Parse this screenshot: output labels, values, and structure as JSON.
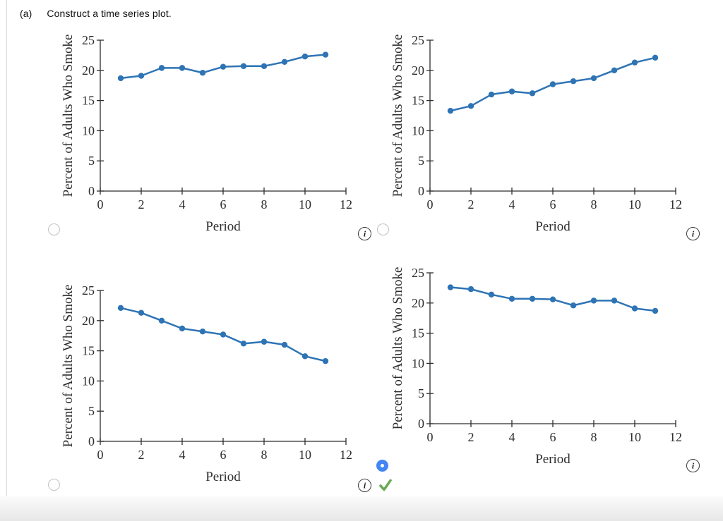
{
  "question": {
    "part_label": "(a)",
    "text": "Construct a time series plot."
  },
  "colors": {
    "line": "#2e74b5",
    "axis": "#2d2d2d",
    "text": "#2d2d2d",
    "selected_radio": "#4285f4",
    "correct_check": "#6aab58"
  },
  "icons": {
    "info_glyph": "i",
    "info_name": "info-icon",
    "check_name": "correct-check-icon"
  },
  "options": [
    {
      "id": "top-left",
      "selected": false,
      "correct_mark": false
    },
    {
      "id": "top-right",
      "selected": false,
      "correct_mark": false
    },
    {
      "id": "bottom-left",
      "selected": false,
      "correct_mark": false
    },
    {
      "id": "bottom-right",
      "selected": true,
      "correct_mark": true
    }
  ],
  "chart_data": [
    {
      "type": "line",
      "position": "top-left",
      "x": [
        1,
        2,
        3,
        4,
        5,
        6,
        7,
        8,
        9,
        10,
        11
      ],
      "values": [
        18.7,
        19.1,
        20.4,
        20.4,
        19.6,
        20.6,
        20.7,
        20.7,
        21.4,
        22.3,
        22.6
      ],
      "xlabel": "Period",
      "ylabel": "Percent of Adults Who Smoke",
      "xlim": [
        0,
        12
      ],
      "ylim": [
        0,
        25
      ],
      "xticks": [
        0,
        2,
        4,
        6,
        8,
        10,
        12
      ],
      "yticks": [
        0,
        5,
        10,
        15,
        20,
        25
      ],
      "grid": false,
      "legend": null
    },
    {
      "type": "line",
      "position": "top-right",
      "x": [
        1,
        2,
        3,
        4,
        5,
        6,
        7,
        8,
        9,
        10,
        11
      ],
      "values": [
        13.3,
        14.1,
        16.0,
        16.5,
        16.2,
        17.7,
        18.2,
        18.7,
        20.0,
        21.3,
        22.1
      ],
      "xlabel": "Period",
      "ylabel": "Percent of Adults Who Smoke",
      "xlim": [
        0,
        12
      ],
      "ylim": [
        0,
        25
      ],
      "xticks": [
        0,
        2,
        4,
        6,
        8,
        10,
        12
      ],
      "yticks": [
        0,
        5,
        10,
        15,
        20,
        25
      ],
      "grid": false,
      "legend": null
    },
    {
      "type": "line",
      "position": "bottom-left",
      "x": [
        1,
        2,
        3,
        4,
        5,
        6,
        7,
        8,
        9,
        10,
        11
      ],
      "values": [
        22.1,
        21.3,
        20.0,
        18.7,
        18.2,
        17.7,
        16.2,
        16.5,
        16.0,
        14.1,
        13.3
      ],
      "xlabel": "Period",
      "ylabel": "Percent of Adults Who Smoke",
      "xlim": [
        0,
        12
      ],
      "ylim": [
        0,
        25
      ],
      "xticks": [
        0,
        2,
        4,
        6,
        8,
        10,
        12
      ],
      "yticks": [
        0,
        5,
        10,
        15,
        20,
        25
      ],
      "grid": false,
      "legend": null
    },
    {
      "type": "line",
      "position": "bottom-right",
      "x": [
        1,
        2,
        3,
        4,
        5,
        6,
        7,
        8,
        9,
        10,
        11
      ],
      "values": [
        22.6,
        22.3,
        21.4,
        20.7,
        20.7,
        20.6,
        19.6,
        20.4,
        20.4,
        19.1,
        18.7
      ],
      "xlabel": "Period",
      "ylabel": "Percent of Adults Who Smoke",
      "xlim": [
        0,
        12
      ],
      "ylim": [
        0,
        25
      ],
      "xticks": [
        0,
        2,
        4,
        6,
        8,
        10,
        12
      ],
      "yticks": [
        0,
        5,
        10,
        15,
        20,
        25
      ],
      "grid": false,
      "legend": null
    }
  ]
}
